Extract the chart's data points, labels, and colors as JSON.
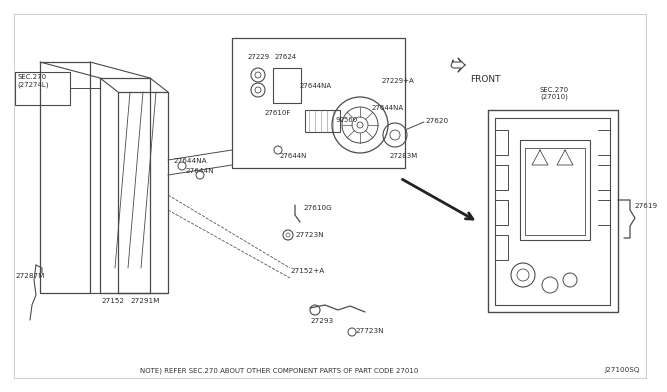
{
  "bg_color": "#ffffff",
  "line_color": "#4a4a4a",
  "text_color": "#2a2a2a",
  "note_text": "NOTE) REFER SEC.270 ABOUT OTHER COMPONENT PARTS OF PART CODE 27010",
  "diagram_code": "J27100SQ",
  "labels": {
    "sec270L": "SEC.270\n(27274L)",
    "sec270D": "SEC.270\n(27010)",
    "27229": "27229",
    "27624": "27624",
    "27610F": "27610F",
    "27644NA_a": "27644NA",
    "27644NA_b": "27644NA",
    "92560": "92560",
    "27229A": "27229+A",
    "27620": "27620",
    "FRONT": "FRONT",
    "27644N_a": "27644N",
    "27644N_b": "27644N",
    "27283M": "27283M",
    "27610G": "27610G",
    "27723N_a": "27723N",
    "27723N_b": "27723N",
    "27152": "27152",
    "27152A": "27152+A",
    "27291M": "27291M",
    "27287M": "27287M",
    "27293": "27293",
    "27619": "27619"
  }
}
